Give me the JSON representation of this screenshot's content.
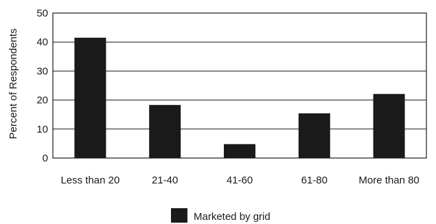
{
  "chart_data": {
    "type": "bar",
    "categories": [
      "Less than 20",
      "21-40",
      "41-60",
      "61-80",
      "More than 80"
    ],
    "series": [
      {
        "name": "Marketed by grid",
        "values": [
          41.5,
          18.3,
          4.8,
          15.4,
          22.1
        ]
      }
    ],
    "title": "",
    "xlabel": "",
    "ylabel": "Percent of Respondents",
    "ylim": [
      0,
      50
    ],
    "yticks": [
      0,
      10,
      20,
      30,
      40,
      50
    ],
    "grid": true,
    "legend_position": "bottom-center",
    "bar_color": "#1a1a1a"
  }
}
